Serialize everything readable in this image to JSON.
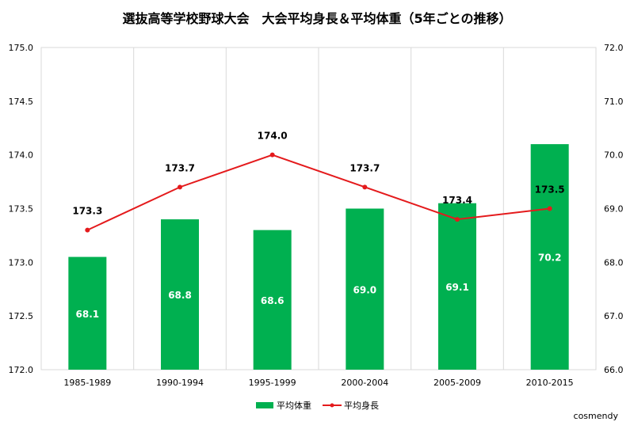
{
  "chart_data": {
    "type": "bar+line",
    "title": "選抜高等学校野球大会　大会平均身長＆平均体重（5年ごとの推移）",
    "categories": [
      "1985-1989",
      "1990-1994",
      "1995-1999",
      "2000-2004",
      "2005-2009",
      "2010-2015"
    ],
    "series": [
      {
        "name": "平均体重",
        "type": "bar",
        "axis": "right",
        "color": "#00B050",
        "values": [
          68.1,
          68.8,
          68.6,
          69.0,
          69.1,
          70.2
        ]
      },
      {
        "name": "平均身長",
        "type": "line",
        "axis": "left",
        "color": "#E41A1C",
        "values": [
          173.3,
          173.7,
          174.0,
          173.7,
          173.4,
          173.5
        ]
      }
    ],
    "left_axis": {
      "ylim": [
        172.0,
        175.0
      ],
      "ticks": [
        "172.0",
        "172.5",
        "173.0",
        "173.5",
        "174.0",
        "174.5",
        "175.0"
      ]
    },
    "right_axis": {
      "ylim": [
        66.0,
        72.0
      ],
      "ticks": [
        "66.0",
        "67.0",
        "68.0",
        "69.0",
        "70.0",
        "71.0",
        "72.0"
      ]
    },
    "grid": "vertical lines between categories",
    "legend": "bottom"
  },
  "credit": "cosmendy"
}
